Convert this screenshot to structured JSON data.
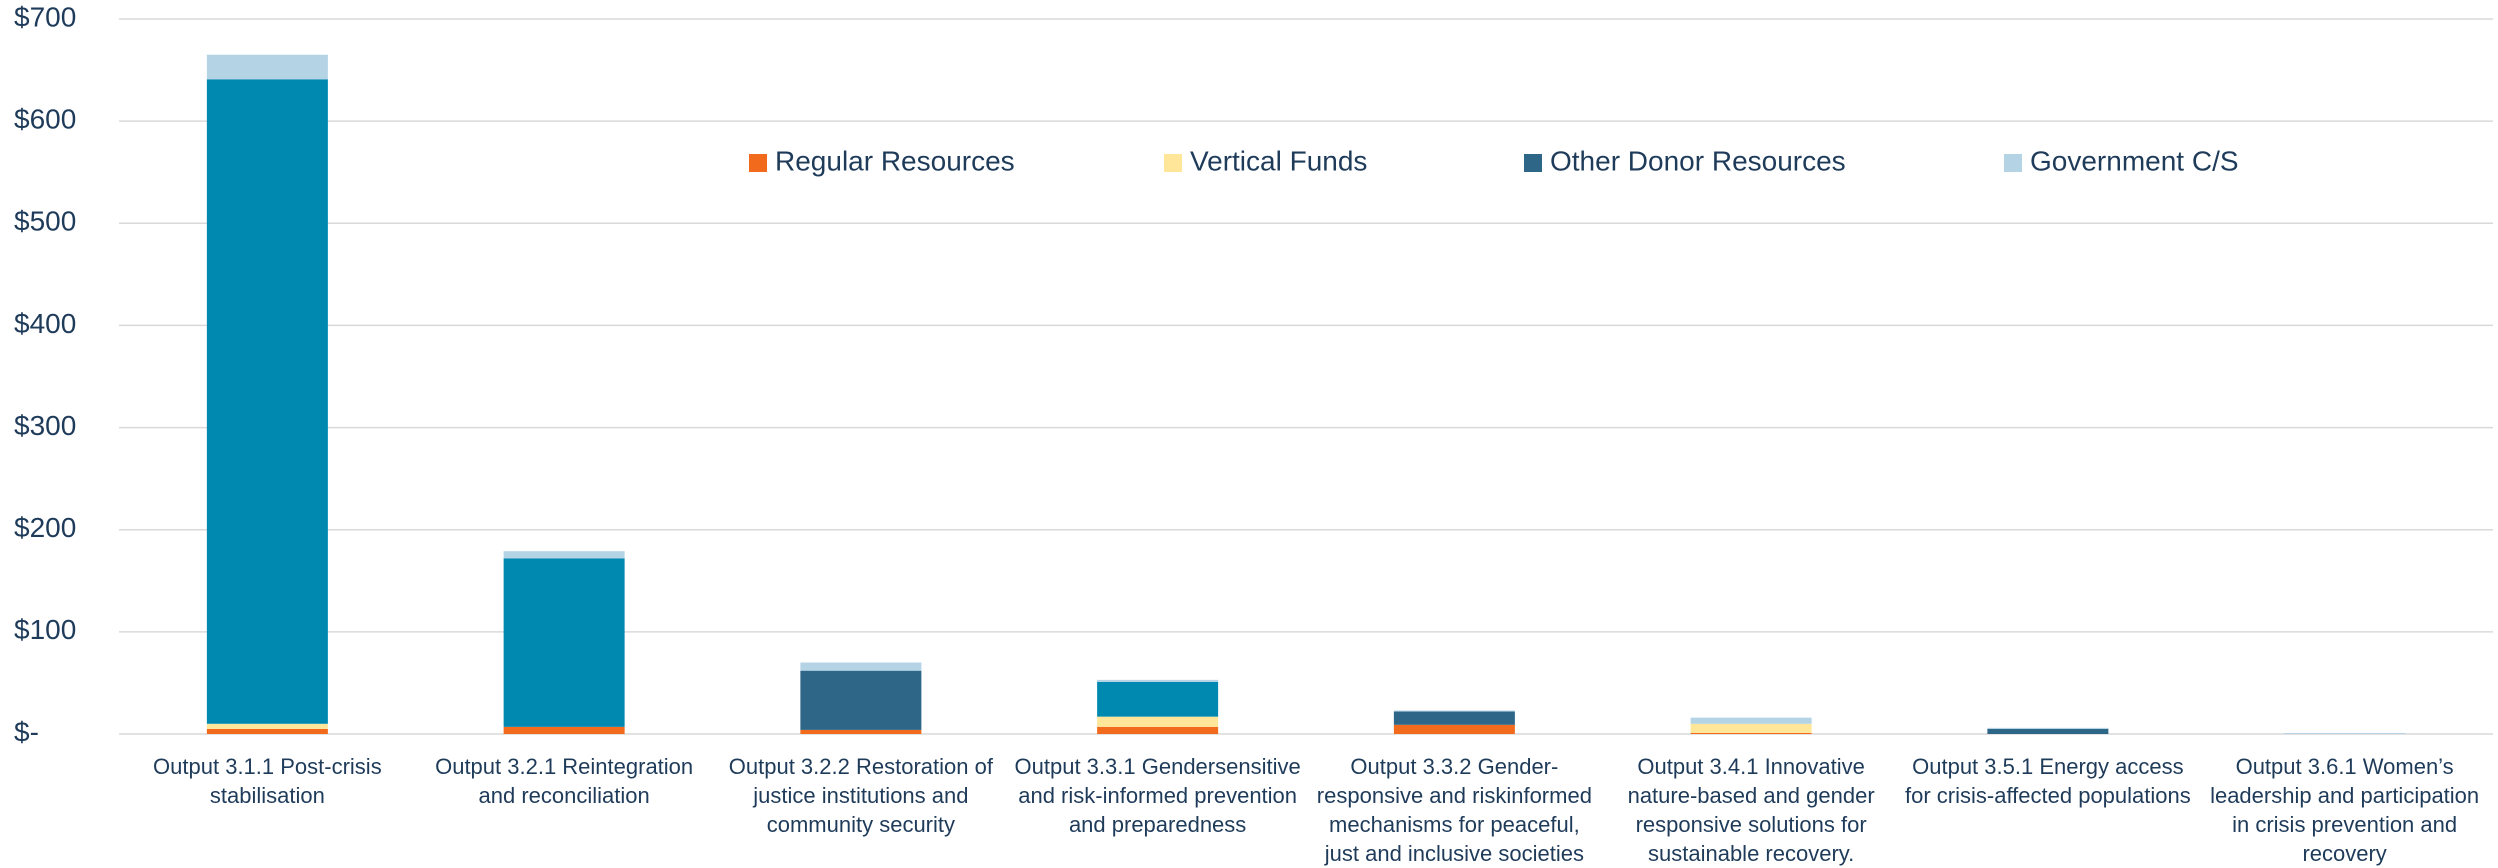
{
  "chart_data": {
    "type": "stacked_bar",
    "categories": [
      "Output 3.1.1 Post-crisis stabilisation",
      "Output 3.2.1 Reintegration and reconciliation",
      "Output 3.2.2 Restoration of justice institutions and community security",
      "Output 3.3.1 Gendersensitive and risk-informed prevention and preparedness",
      "Output 3.3.2 Gender-responsive and riskinformed mechanisms for peaceful, just and inclusive societies",
      "Output 3.4.1 Innovative nature-based and gender responsive solutions for sustainable recovery.",
      "Output 3.5.1 Energy access for crisis-affected populations",
      "Output 3.6.1 Women’s leadership and participation in crisis prevention and recovery"
    ],
    "series": [
      {
        "name": "Regular Resources",
        "color": "#f26b1d",
        "values": [
          5,
          7,
          4,
          7,
          9,
          1,
          0,
          0
        ]
      },
      {
        "name": "Vertical Funds",
        "color": "#ffe699",
        "values": [
          5,
          0,
          0,
          10,
          0,
          9,
          0,
          0
        ]
      },
      {
        "color": "#0089b0",
        "values": [
          631,
          165,
          0,
          34,
          0,
          0,
          0,
          0
        ]
      },
      {
        "name": "Other Donor Resources",
        "color": "#2e6687",
        "values": [
          0,
          0,
          58,
          0,
          13,
          0,
          5,
          0
        ]
      },
      {
        "name": "Government C/S",
        "color": "#b4d4e6",
        "values": [
          24,
          7,
          8,
          2,
          1,
          6,
          1,
          1
        ]
      }
    ],
    "ylim": [
      0,
      700
    ],
    "yticks": [
      {
        "value": 0,
        "label": "$-"
      },
      {
        "value": 100,
        "label": "$100"
      },
      {
        "value": 200,
        "label": "$200"
      },
      {
        "value": 300,
        "label": "$300"
      },
      {
        "value": 400,
        "label": "$400"
      },
      {
        "value": 500,
        "label": "$500"
      },
      {
        "value": 600,
        "label": "$600"
      },
      {
        "value": 700,
        "label": "$700"
      }
    ],
    "grid": true,
    "legend": "top"
  }
}
